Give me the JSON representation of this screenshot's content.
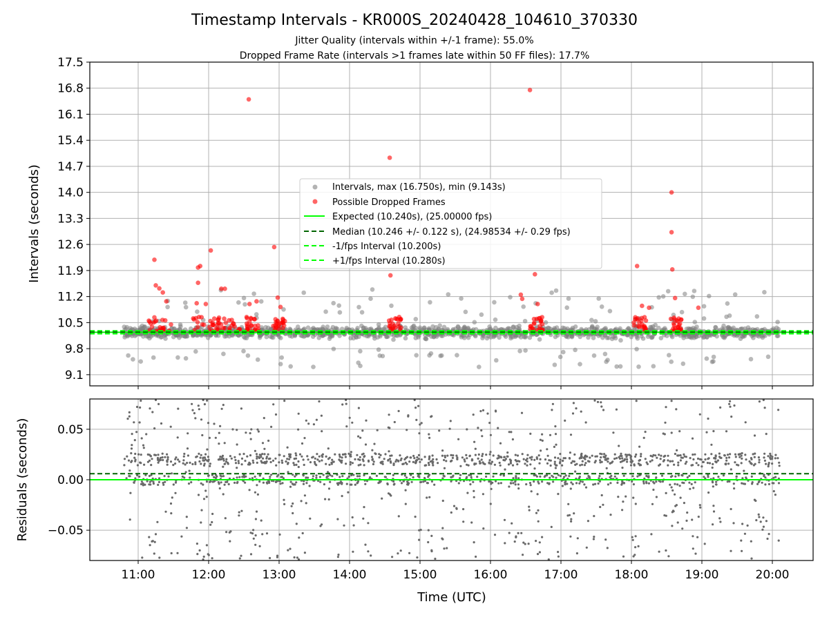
{
  "chart_data": [
    {
      "type": "scatter",
      "title": "Timestamp Intervals - KR000S_20240428_104610_370330",
      "subtitle_lines": [
        "Jitter Quality (intervals within +/-1 frame): 55.0%",
        "Dropped Frame Rate (intervals >1 frames late within 50 FF files): 17.7%"
      ],
      "ylabel": "Intervals (seconds)",
      "ylim": [
        8.8,
        17.5
      ],
      "yticks": [
        "9.1",
        "9.8",
        "10.5",
        "11.2",
        "11.9",
        "12.6",
        "13.3",
        "14.0",
        "14.7",
        "15.4",
        "16.1",
        "16.8",
        "17.5"
      ],
      "grid": true,
      "legend_position": "center",
      "legend": [
        "Intervals, max (16.750s), min (9.143s)",
        "Possible Dropped Frames",
        "Expected (10.240s), (25.00000 fps)",
        "Median (10.246 +/- 0.122 s), (24.98534 +/- 0.29 fps)",
        "-1/fps Interval (10.200s)",
        "+1/fps Interval (10.280s)"
      ],
      "reference_lines": {
        "expected": 10.24,
        "median": 10.246,
        "minus_1_fps": 10.2,
        "plus_1_fps": 10.28
      },
      "colors": {
        "intervals": "#808080",
        "dropped": "#ff0000",
        "expected": "#00ff00",
        "median": "#006400",
        "fps_lines": "#00ff00"
      },
      "time_range_hours": [
        10.8,
        20.1
      ],
      "series": [
        {
          "name": "Possible Dropped Frames",
          "points": [
            {
              "x": 12.57,
              "y": 16.5
            },
            {
              "x": 14.57,
              "y": 14.93
            },
            {
              "x": 16.56,
              "y": 16.75
            },
            {
              "x": 18.57,
              "y": 14.0
            },
            {
              "x": 18.57,
              "y": 12.93
            },
            {
              "x": 18.58,
              "y": 11.93
            },
            {
              "x": 18.08,
              "y": 12.02
            },
            {
              "x": 16.63,
              "y": 11.8
            },
            {
              "x": 14.58,
              "y": 11.77
            },
            {
              "x": 11.23,
              "y": 12.19
            },
            {
              "x": 11.88,
              "y": 12.02
            },
            {
              "x": 11.85,
              "y": 11.98
            },
            {
              "x": 12.03,
              "y": 12.44
            },
            {
              "x": 12.93,
              "y": 12.53
            },
            {
              "x": 11.85,
              "y": 11.57
            },
            {
              "x": 11.25,
              "y": 11.5
            },
            {
              "x": 11.3,
              "y": 11.42
            },
            {
              "x": 12.18,
              "y": 11.41
            },
            {
              "x": 12.23,
              "y": 11.41
            },
            {
              "x": 11.35,
              "y": 11.31
            },
            {
              "x": 12.98,
              "y": 11.17
            },
            {
              "x": 18.62,
              "y": 11.16
            },
            {
              "x": 16.43,
              "y": 11.25
            },
            {
              "x": 16.45,
              "y": 11.14
            },
            {
              "x": 18.95,
              "y": 10.9
            },
            {
              "x": 12.68,
              "y": 11.07
            },
            {
              "x": 11.4,
              "y": 11.07
            },
            {
              "x": 11.83,
              "y": 11.02
            },
            {
              "x": 11.96,
              "y": 11.0
            },
            {
              "x": 12.58,
              "y": 11.0
            },
            {
              "x": 16.67,
              "y": 11.0
            },
            {
              "x": 18.15,
              "y": 10.95
            },
            {
              "x": 18.25,
              "y": 10.9
            },
            {
              "x": 13.02,
              "y": 10.92
            }
          ]
        }
      ]
    },
    {
      "type": "scatter",
      "title": "",
      "xlabel": "Time (UTC)",
      "ylabel": "Residuals (seconds)",
      "ylim": [
        -0.08,
        0.08
      ],
      "yticks": [
        "−0.05",
        "0.00",
        "0.05"
      ],
      "xticks": [
        "11:00",
        "12:00",
        "13:00",
        "14:00",
        "15:00",
        "16:00",
        "17:00",
        "18:00",
        "19:00",
        "20:00"
      ],
      "grid": true,
      "reference_lines": {
        "zero": 0.0,
        "median_offset": 0.006
      },
      "colors": {
        "points": "#696969",
        "zero": "#00ff00",
        "median": "#006400"
      }
    }
  ]
}
